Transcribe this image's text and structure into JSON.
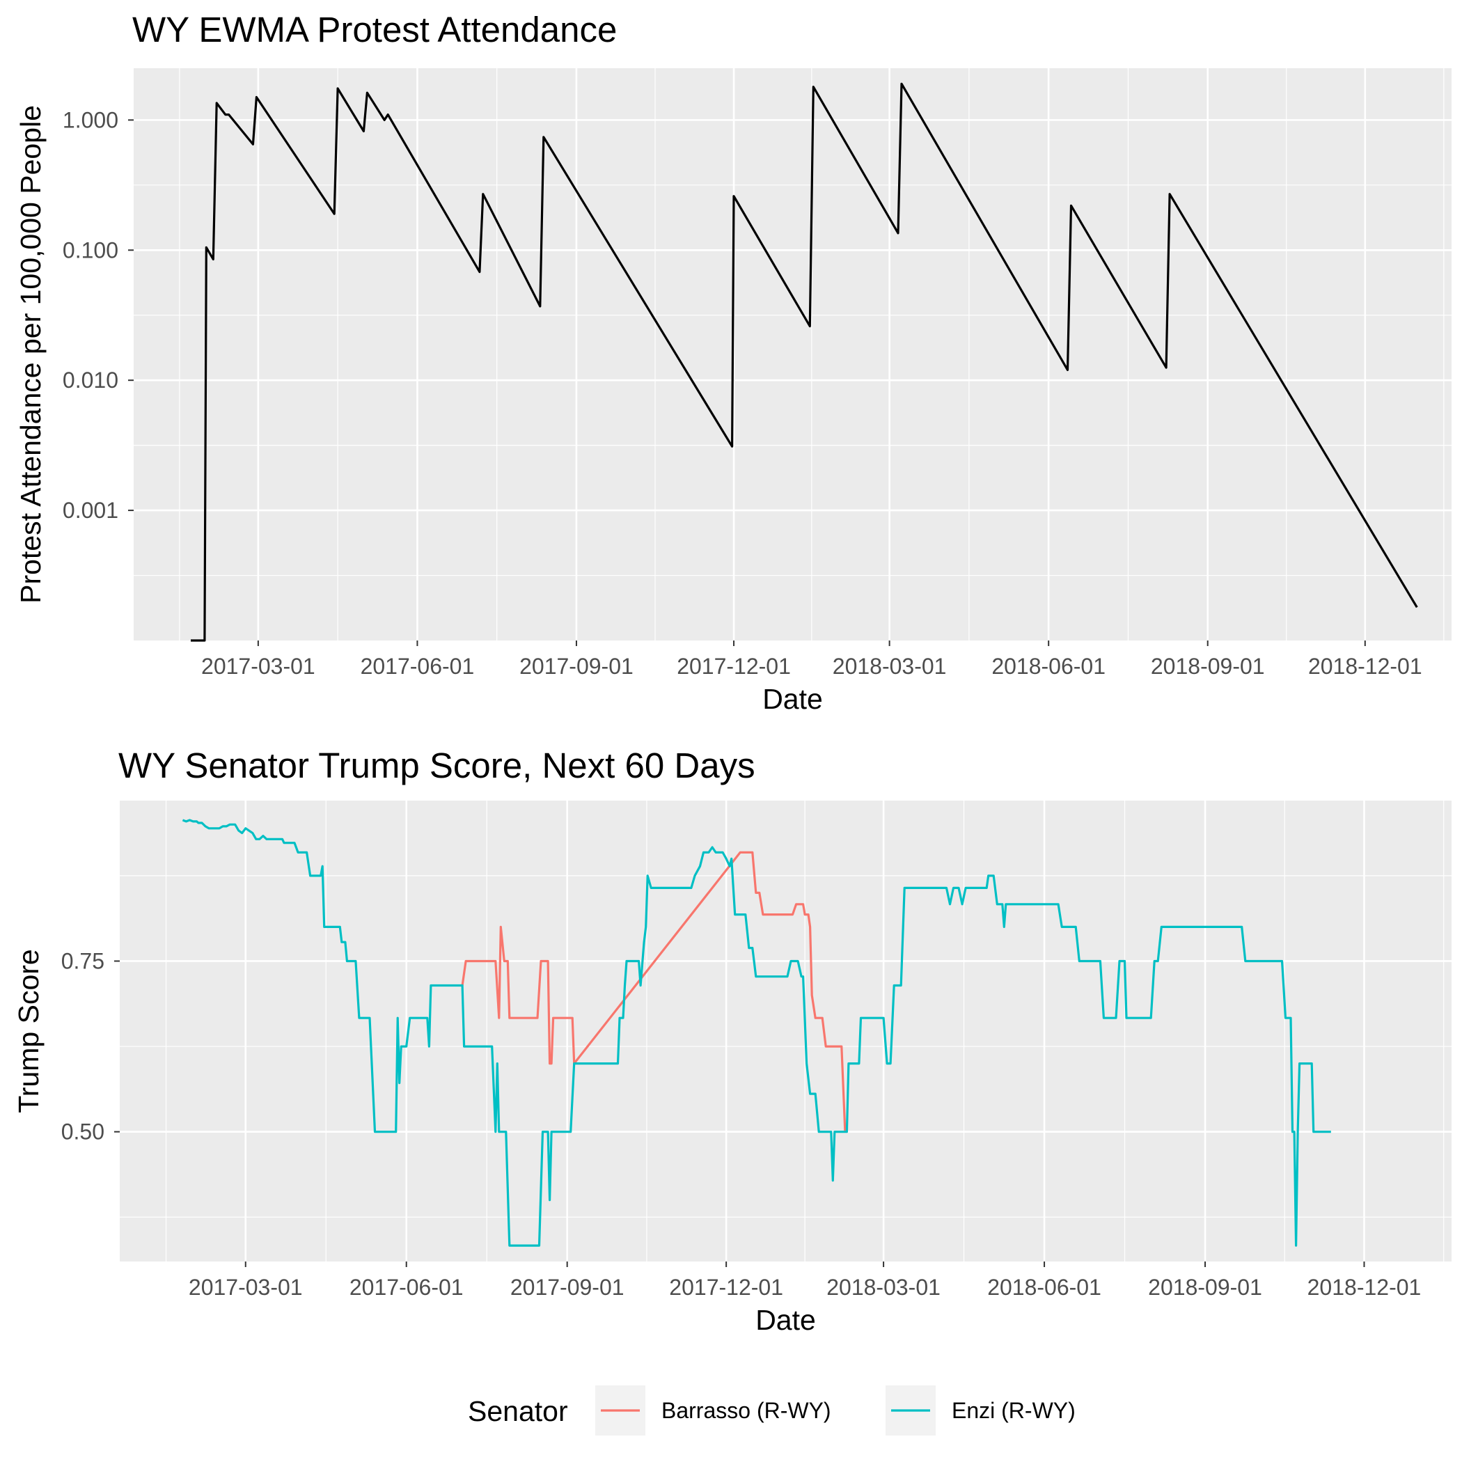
{
  "chart_data": [
    {
      "type": "line",
      "title": "WY EWMA Protest Attendance",
      "xlabel": "Date",
      "ylabel": "Protest Attendance per 100,000 People",
      "y_scale": "log10",
      "ylim": [
        0.0001,
        2.5
      ],
      "x_range": [
        "2016-12-19",
        "2019-01-20"
      ],
      "y_ticks": [
        0.001,
        0.01,
        0.1,
        1
      ],
      "y_tick_labels": [
        "0.001",
        "0.010",
        "0.100",
        "1.000"
      ],
      "x_ticks": [
        "2017-03-01",
        "2017-06-01",
        "2017-09-01",
        "2017-12-01",
        "2018-03-01",
        "2018-06-01",
        "2018-09-01",
        "2018-12-01"
      ],
      "x_tick_labels": [
        "2017-03-01",
        "2017-06-01",
        "2017-09-01",
        "2017-12-01",
        "2018-03-01",
        "2018-06-01",
        "2018-09-01",
        "2018-12-01"
      ],
      "grid": true,
      "series": [
        {
          "color": "#000000",
          "points": [
            [
              "2017-01-21",
              0.0001
            ],
            [
              "2017-01-29",
              0.0001
            ],
            [
              "2017-01-30",
              0.105
            ],
            [
              "2017-02-03",
              0.085
            ],
            [
              "2017-02-05",
              1.35
            ],
            [
              "2017-02-10",
              1.1
            ],
            [
              "2017-02-12",
              1.1
            ],
            [
              "2017-02-26",
              0.65
            ],
            [
              "2017-02-28",
              1.5
            ],
            [
              "2017-04-14",
              0.19
            ],
            [
              "2017-04-16",
              1.75
            ],
            [
              "2017-05-01",
              0.82
            ],
            [
              "2017-05-03",
              1.62
            ],
            [
              "2017-05-13",
              1.0
            ],
            [
              "2017-05-15",
              1.1
            ],
            [
              "2017-07-07",
              0.068
            ],
            [
              "2017-07-09",
              0.27
            ],
            [
              "2017-08-11",
              0.037
            ],
            [
              "2017-08-13",
              0.74
            ],
            [
              "2017-11-30",
              0.0031
            ],
            [
              "2017-12-01",
              0.26
            ],
            [
              "2018-01-14",
              0.026
            ],
            [
              "2018-01-16",
              1.8
            ],
            [
              "2018-03-06",
              0.135
            ],
            [
              "2018-03-08",
              1.9
            ],
            [
              "2018-06-12",
              0.012
            ],
            [
              "2018-06-14",
              0.22
            ],
            [
              "2018-08-08",
              0.0125
            ],
            [
              "2018-08-10",
              0.27
            ],
            [
              "2018-12-31",
              0.00018
            ]
          ]
        }
      ]
    },
    {
      "type": "line",
      "title": "WY Senator Trump Score, Next 60 Days",
      "xlabel": "Date",
      "ylabel": "Trump Score",
      "ylim": [
        0.31,
        0.985
      ],
      "x_range": [
        "2016-12-19",
        "2019-01-20"
      ],
      "y_ticks": [
        0.5,
        0.75
      ],
      "y_tick_labels": [
        "0.50",
        "0.75"
      ],
      "x_ticks": [
        "2017-03-01",
        "2017-06-01",
        "2017-09-01",
        "2017-12-01",
        "2018-03-01",
        "2018-06-01",
        "2018-09-01",
        "2018-12-01"
      ],
      "x_tick_labels": [
        "2017-03-01",
        "2017-06-01",
        "2017-09-01",
        "2017-12-01",
        "2018-03-01",
        "2018-06-01",
        "2018-09-01",
        "2018-12-01"
      ],
      "grid": true,
      "legend": {
        "title": "Senator",
        "position": "bottom"
      },
      "series": [
        {
          "name": "Barrasso (R-WY)",
          "color": "#F8766D",
          "points": [
            [
              "2017-07-03",
              0.7143
            ],
            [
              "2017-07-05",
              0.75
            ],
            [
              "2017-07-22",
              0.75
            ],
            [
              "2017-07-24",
              0.6667
            ],
            [
              "2017-07-25",
              0.8
            ],
            [
              "2017-07-27",
              0.75
            ],
            [
              "2017-07-29",
              0.75
            ],
            [
              "2017-07-30",
              0.6667
            ],
            [
              "2017-08-15",
              0.6667
            ],
            [
              "2017-08-17",
              0.75
            ],
            [
              "2017-08-21",
              0.75
            ],
            [
              "2017-08-22",
              0.6
            ],
            [
              "2017-08-23",
              0.6
            ],
            [
              "2017-08-24",
              0.6667
            ],
            [
              "2017-09-04",
              0.6667
            ],
            [
              "2017-09-05",
              0.6
            ],
            [
              "2017-12-09",
              0.9091
            ],
            [
              "2017-12-16",
              0.9091
            ],
            [
              "2017-12-18",
              0.85
            ],
            [
              "2017-12-20",
              0.85
            ],
            [
              "2017-12-22",
              0.8182
            ],
            [
              "2018-01-08",
              0.8182
            ],
            [
              "2018-01-10",
              0.8333
            ],
            [
              "2018-01-14",
              0.8333
            ],
            [
              "2018-01-15",
              0.8182
            ],
            [
              "2018-01-17",
              0.8182
            ],
            [
              "2018-01-18",
              0.8
            ],
            [
              "2018-01-19",
              0.7
            ],
            [
              "2018-01-21",
              0.6667
            ],
            [
              "2018-01-25",
              0.6667
            ],
            [
              "2018-01-27",
              0.625
            ],
            [
              "2018-02-05",
              0.625
            ],
            [
              "2018-02-07",
              0.5
            ]
          ]
        },
        {
          "name": "Enzi (R-WY)",
          "color": "#00BFC4",
          "points": [
            [
              "2017-01-24",
              0.9565
            ],
            [
              "2017-01-26",
              0.9545
            ],
            [
              "2017-01-28",
              0.9565
            ],
            [
              "2017-01-30",
              0.9545
            ],
            [
              "2017-02-01",
              0.9545
            ],
            [
              "2017-02-02",
              0.9524
            ],
            [
              "2017-02-04",
              0.9524
            ],
            [
              "2017-02-06",
              0.9474
            ],
            [
              "2017-02-08",
              0.9444
            ],
            [
              "2017-02-14",
              0.9444
            ],
            [
              "2017-02-16",
              0.9474
            ],
            [
              "2017-02-18",
              0.9474
            ],
            [
              "2017-02-20",
              0.95
            ],
            [
              "2017-02-23",
              0.95
            ],
            [
              "2017-02-25",
              0.9412
            ],
            [
              "2017-02-27",
              0.9375
            ],
            [
              "2017-03-01",
              0.9444
            ],
            [
              "2017-03-05",
              0.9375
            ],
            [
              "2017-03-07",
              0.9286
            ],
            [
              "2017-03-09",
              0.9286
            ],
            [
              "2017-03-11",
              0.9333
            ],
            [
              "2017-03-13",
              0.9286
            ],
            [
              "2017-03-22",
              0.9286
            ],
            [
              "2017-03-23",
              0.9231
            ],
            [
              "2017-03-29",
              0.9231
            ],
            [
              "2017-03-31",
              0.9091
            ],
            [
              "2017-04-05",
              0.9091
            ],
            [
              "2017-04-07",
              0.875
            ],
            [
              "2017-04-13",
              0.875
            ],
            [
              "2017-04-14",
              0.8889
            ],
            [
              "2017-04-15",
              0.8
            ],
            [
              "2017-04-24",
              0.8
            ],
            [
              "2017-04-25",
              0.7778
            ],
            [
              "2017-04-27",
              0.7778
            ],
            [
              "2017-04-28",
              0.75
            ],
            [
              "2017-05-03",
              0.75
            ],
            [
              "2017-05-05",
              0.6667
            ],
            [
              "2017-05-11",
              0.6667
            ],
            [
              "2017-05-14",
              0.5
            ],
            [
              "2017-05-16",
              0.5
            ],
            [
              "2017-05-26",
              0.5
            ],
            [
              "2017-05-27",
              0.6667
            ],
            [
              "2017-05-28",
              0.5714
            ],
            [
              "2017-05-29",
              0.625
            ],
            [
              "2017-06-01",
              0.625
            ],
            [
              "2017-06-03",
              0.6667
            ],
            [
              "2017-06-13",
              0.6667
            ],
            [
              "2017-06-14",
              0.625
            ],
            [
              "2017-06-15",
              0.7143
            ],
            [
              "2017-07-03",
              0.7143
            ],
            [
              "2017-07-04",
              0.625
            ],
            [
              "2017-07-20",
              0.625
            ],
            [
              "2017-07-22",
              0.5
            ],
            [
              "2017-07-23",
              0.6
            ],
            [
              "2017-07-24",
              0.5
            ],
            [
              "2017-07-28",
              0.5
            ],
            [
              "2017-07-30",
              0.3333
            ],
            [
              "2017-08-16",
              0.3333
            ],
            [
              "2017-08-18",
              0.5
            ],
            [
              "2017-08-21",
              0.5
            ],
            [
              "2017-08-22",
              0.4
            ],
            [
              "2017-08-23",
              0.5
            ],
            [
              "2017-09-03",
              0.5
            ],
            [
              "2017-09-05",
              0.6
            ],
            [
              "2017-09-30",
              0.6
            ],
            [
              "2017-10-01",
              0.6667
            ],
            [
              "2017-10-03",
              0.6667
            ],
            [
              "2017-10-04",
              0.7143
            ],
            [
              "2017-10-05",
              0.75
            ],
            [
              "2017-10-12",
              0.75
            ],
            [
              "2017-10-13",
              0.7143
            ],
            [
              "2017-10-15",
              0.7778
            ],
            [
              "2017-10-16",
              0.8
            ],
            [
              "2017-10-17",
              0.875
            ],
            [
              "2017-10-19",
              0.8571
            ],
            [
              "2017-11-11",
              0.8571
            ],
            [
              "2017-11-13",
              0.875
            ],
            [
              "2017-11-16",
              0.8889
            ],
            [
              "2017-11-18",
              0.9091
            ],
            [
              "2017-11-21",
              0.9091
            ],
            [
              "2017-11-23",
              0.9167
            ],
            [
              "2017-11-25",
              0.9091
            ],
            [
              "2017-11-29",
              0.9091
            ],
            [
              "2017-12-01",
              0.9
            ],
            [
              "2017-12-03",
              0.8889
            ],
            [
              "2017-12-04",
              0.9
            ],
            [
              "2017-12-06",
              0.8182
            ],
            [
              "2017-12-12",
              0.8182
            ],
            [
              "2017-12-14",
              0.7692
            ],
            [
              "2017-12-16",
              0.7692
            ],
            [
              "2017-12-18",
              0.7273
            ],
            [
              "2018-01-05",
              0.7273
            ],
            [
              "2018-01-07",
              0.75
            ],
            [
              "2018-01-11",
              0.75
            ],
            [
              "2018-01-13",
              0.7273
            ],
            [
              "2018-01-14",
              0.7273
            ],
            [
              "2018-01-16",
              0.6
            ],
            [
              "2018-01-18",
              0.5556
            ],
            [
              "2018-01-21",
              0.5556
            ],
            [
              "2018-01-23",
              0.5
            ],
            [
              "2018-01-30",
              0.5
            ],
            [
              "2018-01-31",
              0.4286
            ],
            [
              "2018-02-01",
              0.5
            ],
            [
              "2018-02-08",
              0.5
            ],
            [
              "2018-02-09",
              0.6
            ],
            [
              "2018-02-15",
              0.6
            ],
            [
              "2018-02-16",
              0.6667
            ],
            [
              "2018-03-01",
              0.6667
            ],
            [
              "2018-03-03",
              0.6
            ],
            [
              "2018-03-05",
              0.6
            ],
            [
              "2018-03-07",
              0.7143
            ],
            [
              "2018-03-11",
              0.7143
            ],
            [
              "2018-03-13",
              0.8571
            ],
            [
              "2018-04-06",
              0.8571
            ],
            [
              "2018-04-08",
              0.8333
            ],
            [
              "2018-04-10",
              0.8571
            ],
            [
              "2018-04-13",
              0.8571
            ],
            [
              "2018-04-15",
              0.8333
            ],
            [
              "2018-04-17",
              0.8571
            ],
            [
              "2018-04-29",
              0.8571
            ],
            [
              "2018-04-30",
              0.875
            ],
            [
              "2018-05-03",
              0.875
            ],
            [
              "2018-05-05",
              0.8333
            ],
            [
              "2018-05-08",
              0.8333
            ],
            [
              "2018-05-09",
              0.8
            ],
            [
              "2018-05-10",
              0.8333
            ],
            [
              "2018-06-09",
              0.8333
            ],
            [
              "2018-06-11",
              0.8
            ],
            [
              "2018-06-19",
              0.8
            ],
            [
              "2018-06-21",
              0.75
            ],
            [
              "2018-07-03",
              0.75
            ],
            [
              "2018-07-05",
              0.6667
            ],
            [
              "2018-07-12",
              0.6667
            ],
            [
              "2018-07-14",
              0.75
            ],
            [
              "2018-07-17",
              0.75
            ],
            [
              "2018-07-18",
              0.6667
            ],
            [
              "2018-08-01",
              0.6667
            ],
            [
              "2018-08-03",
              0.75
            ],
            [
              "2018-08-05",
              0.75
            ],
            [
              "2018-08-07",
              0.8
            ],
            [
              "2018-09-22",
              0.8
            ],
            [
              "2018-09-24",
              0.75
            ],
            [
              "2018-10-15",
              0.75
            ],
            [
              "2018-10-17",
              0.6667
            ],
            [
              "2018-10-20",
              0.6667
            ],
            [
              "2018-10-21",
              0.5
            ],
            [
              "2018-10-22",
              0.5
            ],
            [
              "2018-10-23",
              0.3333
            ],
            [
              "2018-10-24",
              0.5
            ],
            [
              "2018-10-25",
              0.6
            ],
            [
              "2018-11-01",
              0.6
            ],
            [
              "2018-11-02",
              0.5
            ],
            [
              "2018-11-12",
              0.5
            ]
          ]
        }
      ]
    }
  ]
}
